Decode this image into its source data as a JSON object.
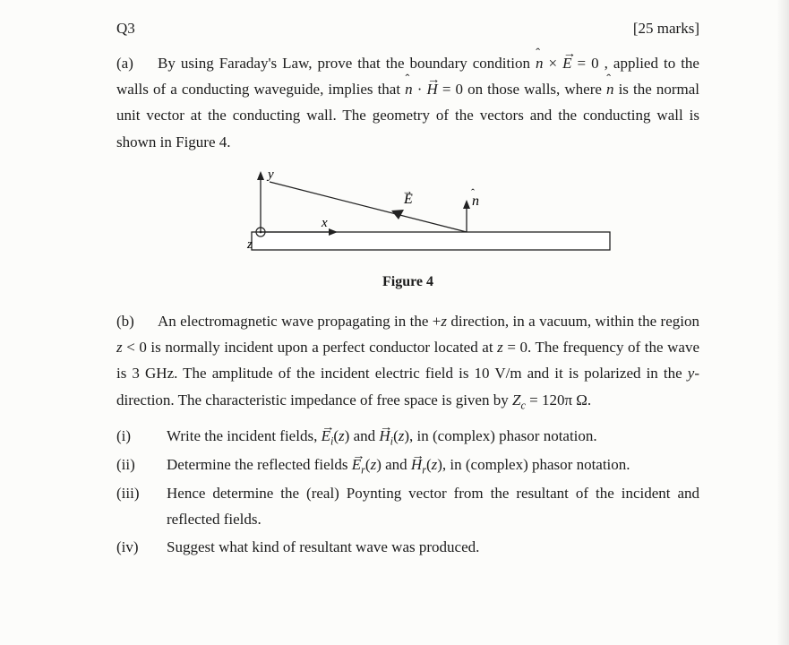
{
  "header": {
    "q": "Q3",
    "marks": "[25 marks]"
  },
  "partA": {
    "label": "(a)",
    "text_html": "By using Faraday's Law, prove that the boundary condition <span class='hat'><span class='mi'>n</span><span class='car'>ˆ</span></span> × <span class='vec'><span class='mi'>E</span><span class='arrow'>→</span></span> = 0 , applied to the walls of a conducting waveguide, implies that <span class='hat'><span class='mi'>n</span><span class='car'>ˆ</span></span> · <span class='vec'><span class='mi'>H</span><span class='arrow'>→</span></span> = 0 on those walls, where <span class='hat'><span class='mi'>n</span><span class='car'>ˆ</span></span> is the normal unit vector at the conducting wall. The geometry of the vectors and the conducting wall is shown in Figure 4."
  },
  "figure": {
    "caption": "Figure 4",
    "labels": {
      "y": "y",
      "x": "x",
      "z": "z",
      "E": "E",
      "n": "n"
    },
    "colors": {
      "stroke": "#222222",
      "fill_wall": "#ffffff",
      "bg": "#fcfcfa"
    },
    "stroke_width": 1.3
  },
  "partB": {
    "label": "(b)",
    "text_html": "An electromagnetic wave propagating in the +<span class='mi'>z</span> direction, in a vacuum, within the region <span class='mi'>z</span> &lt; 0 is normally incident upon a perfect conductor located at <span class='mi'>z</span> = 0. The frequency of the wave is 3 GHz. The amplitude of the incident electric field is 10 V/m and it is polarized in the <span class='mi'>y</span>-direction. The characteristic impedance of free space is given by <span class='mi'>Z<sub>c</sub></span> = 120π Ω."
  },
  "subparts": [
    {
      "num": "(i)",
      "html": "Write the incident fields, <span class='vec'><span class='mi'>E</span><span class='arrow'>→</span></span><sub><span class='mi'>i</span></sub>(<span class='mi'>z</span>) and <span class='vec'><span class='mi'>H</span><span class='arrow'>→</span></span><sub><span class='mi'>i</span></sub>(<span class='mi'>z</span>), in (complex) phasor notation."
    },
    {
      "num": "(ii)",
      "html": "Determine the reflected fields <span class='vec'><span class='mi'>E</span><span class='arrow'>→</span></span><sub><span class='mi'>r</span></sub>(<span class='mi'>z</span>) and <span class='vec'><span class='mi'>H</span><span class='arrow'>→</span></span><sub><span class='mi'>r</span></sub>(<span class='mi'>z</span>), in (complex) phasor notation."
    },
    {
      "num": "(iii)",
      "html": "Hence determine the (real) Poynting vector from the resultant of the incident and reflected fields."
    },
    {
      "num": "(iv)",
      "html": "Suggest what kind of resultant wave was produced."
    }
  ]
}
